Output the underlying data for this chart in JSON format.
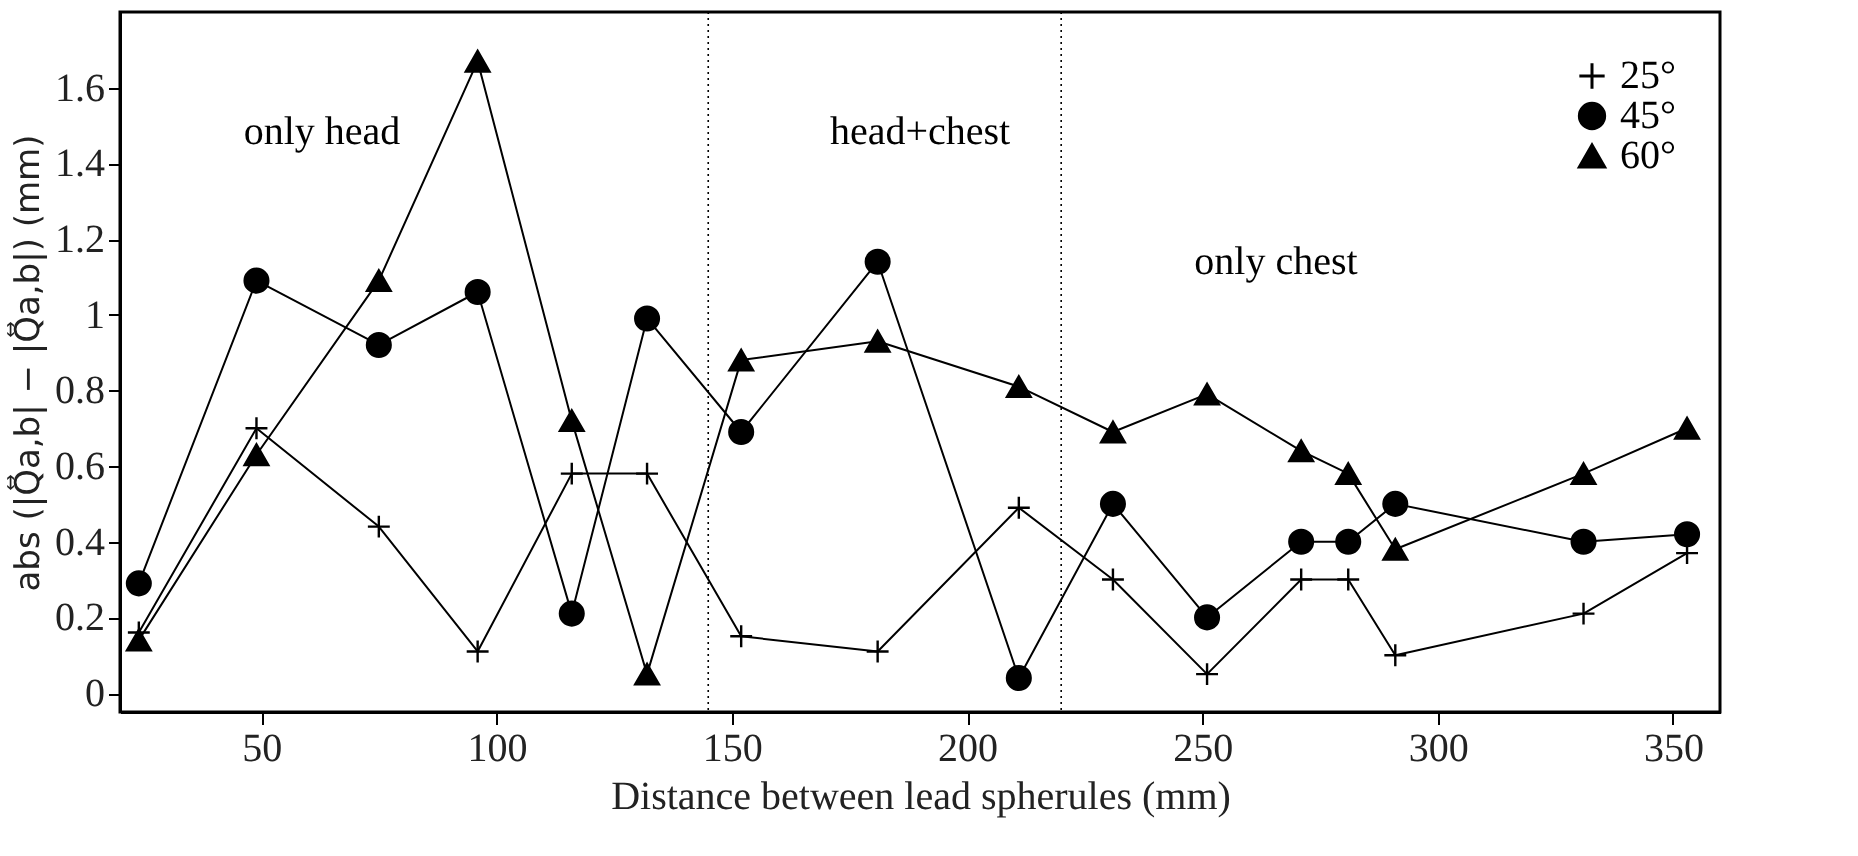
{
  "chart_data": {
    "type": "line",
    "xlabel": "Distance between lead spherules (mm)",
    "ylabel": "abs (|Q⃡a,b| − |Q⃡a,b|) (mm)",
    "x": [
      24,
      49,
      75,
      96,
      116,
      132,
      152,
      181,
      211,
      231,
      251,
      271,
      281,
      291,
      331,
      353
    ],
    "series": [
      {
        "name": "25°",
        "color": "#000000",
        "marker": "cross",
        "values": [
          0.16,
          0.7,
          0.44,
          0.11,
          0.58,
          0.58,
          0.15,
          0.11,
          0.49,
          0.3,
          0.05,
          0.3,
          0.3,
          0.1,
          0.21,
          0.37
        ]
      },
      {
        "name": "45°",
        "color": "#000000",
        "marker": "circle",
        "values": [
          0.29,
          1.09,
          0.92,
          1.06,
          0.21,
          0.99,
          0.69,
          1.14,
          0.04,
          0.5,
          0.2,
          0.4,
          0.4,
          0.5,
          0.4,
          0.42
        ]
      },
      {
        "name": "60°",
        "color": "#000000",
        "marker": "triangle",
        "values": [
          0.14,
          0.63,
          1.09,
          1.67,
          0.72,
          0.05,
          0.88,
          0.93,
          0.81,
          0.69,
          0.79,
          0.64,
          0.58,
          0.38,
          0.58,
          0.7
        ]
      }
    ],
    "xlim": [
      20,
      360
    ],
    "xticks": [
      50,
      100,
      150,
      200,
      250,
      300,
      350
    ],
    "ylim": [
      -0.05,
      1.8
    ],
    "yticks": [
      0,
      0.2,
      0.4,
      0.6,
      0.8,
      1,
      1.2,
      1.4,
      1.6
    ],
    "ref_lines": [
      {
        "axis": "x",
        "value": 145,
        "color": "#000000",
        "line_style": "dotted"
      },
      {
        "axis": "x",
        "value": 220,
        "color": "#000000",
        "line_style": "dotted"
      }
    ],
    "annotations": [
      "only head",
      "head+chest",
      "only chest"
    ],
    "line_style": "solid",
    "grid": false,
    "legend": "top right"
  }
}
